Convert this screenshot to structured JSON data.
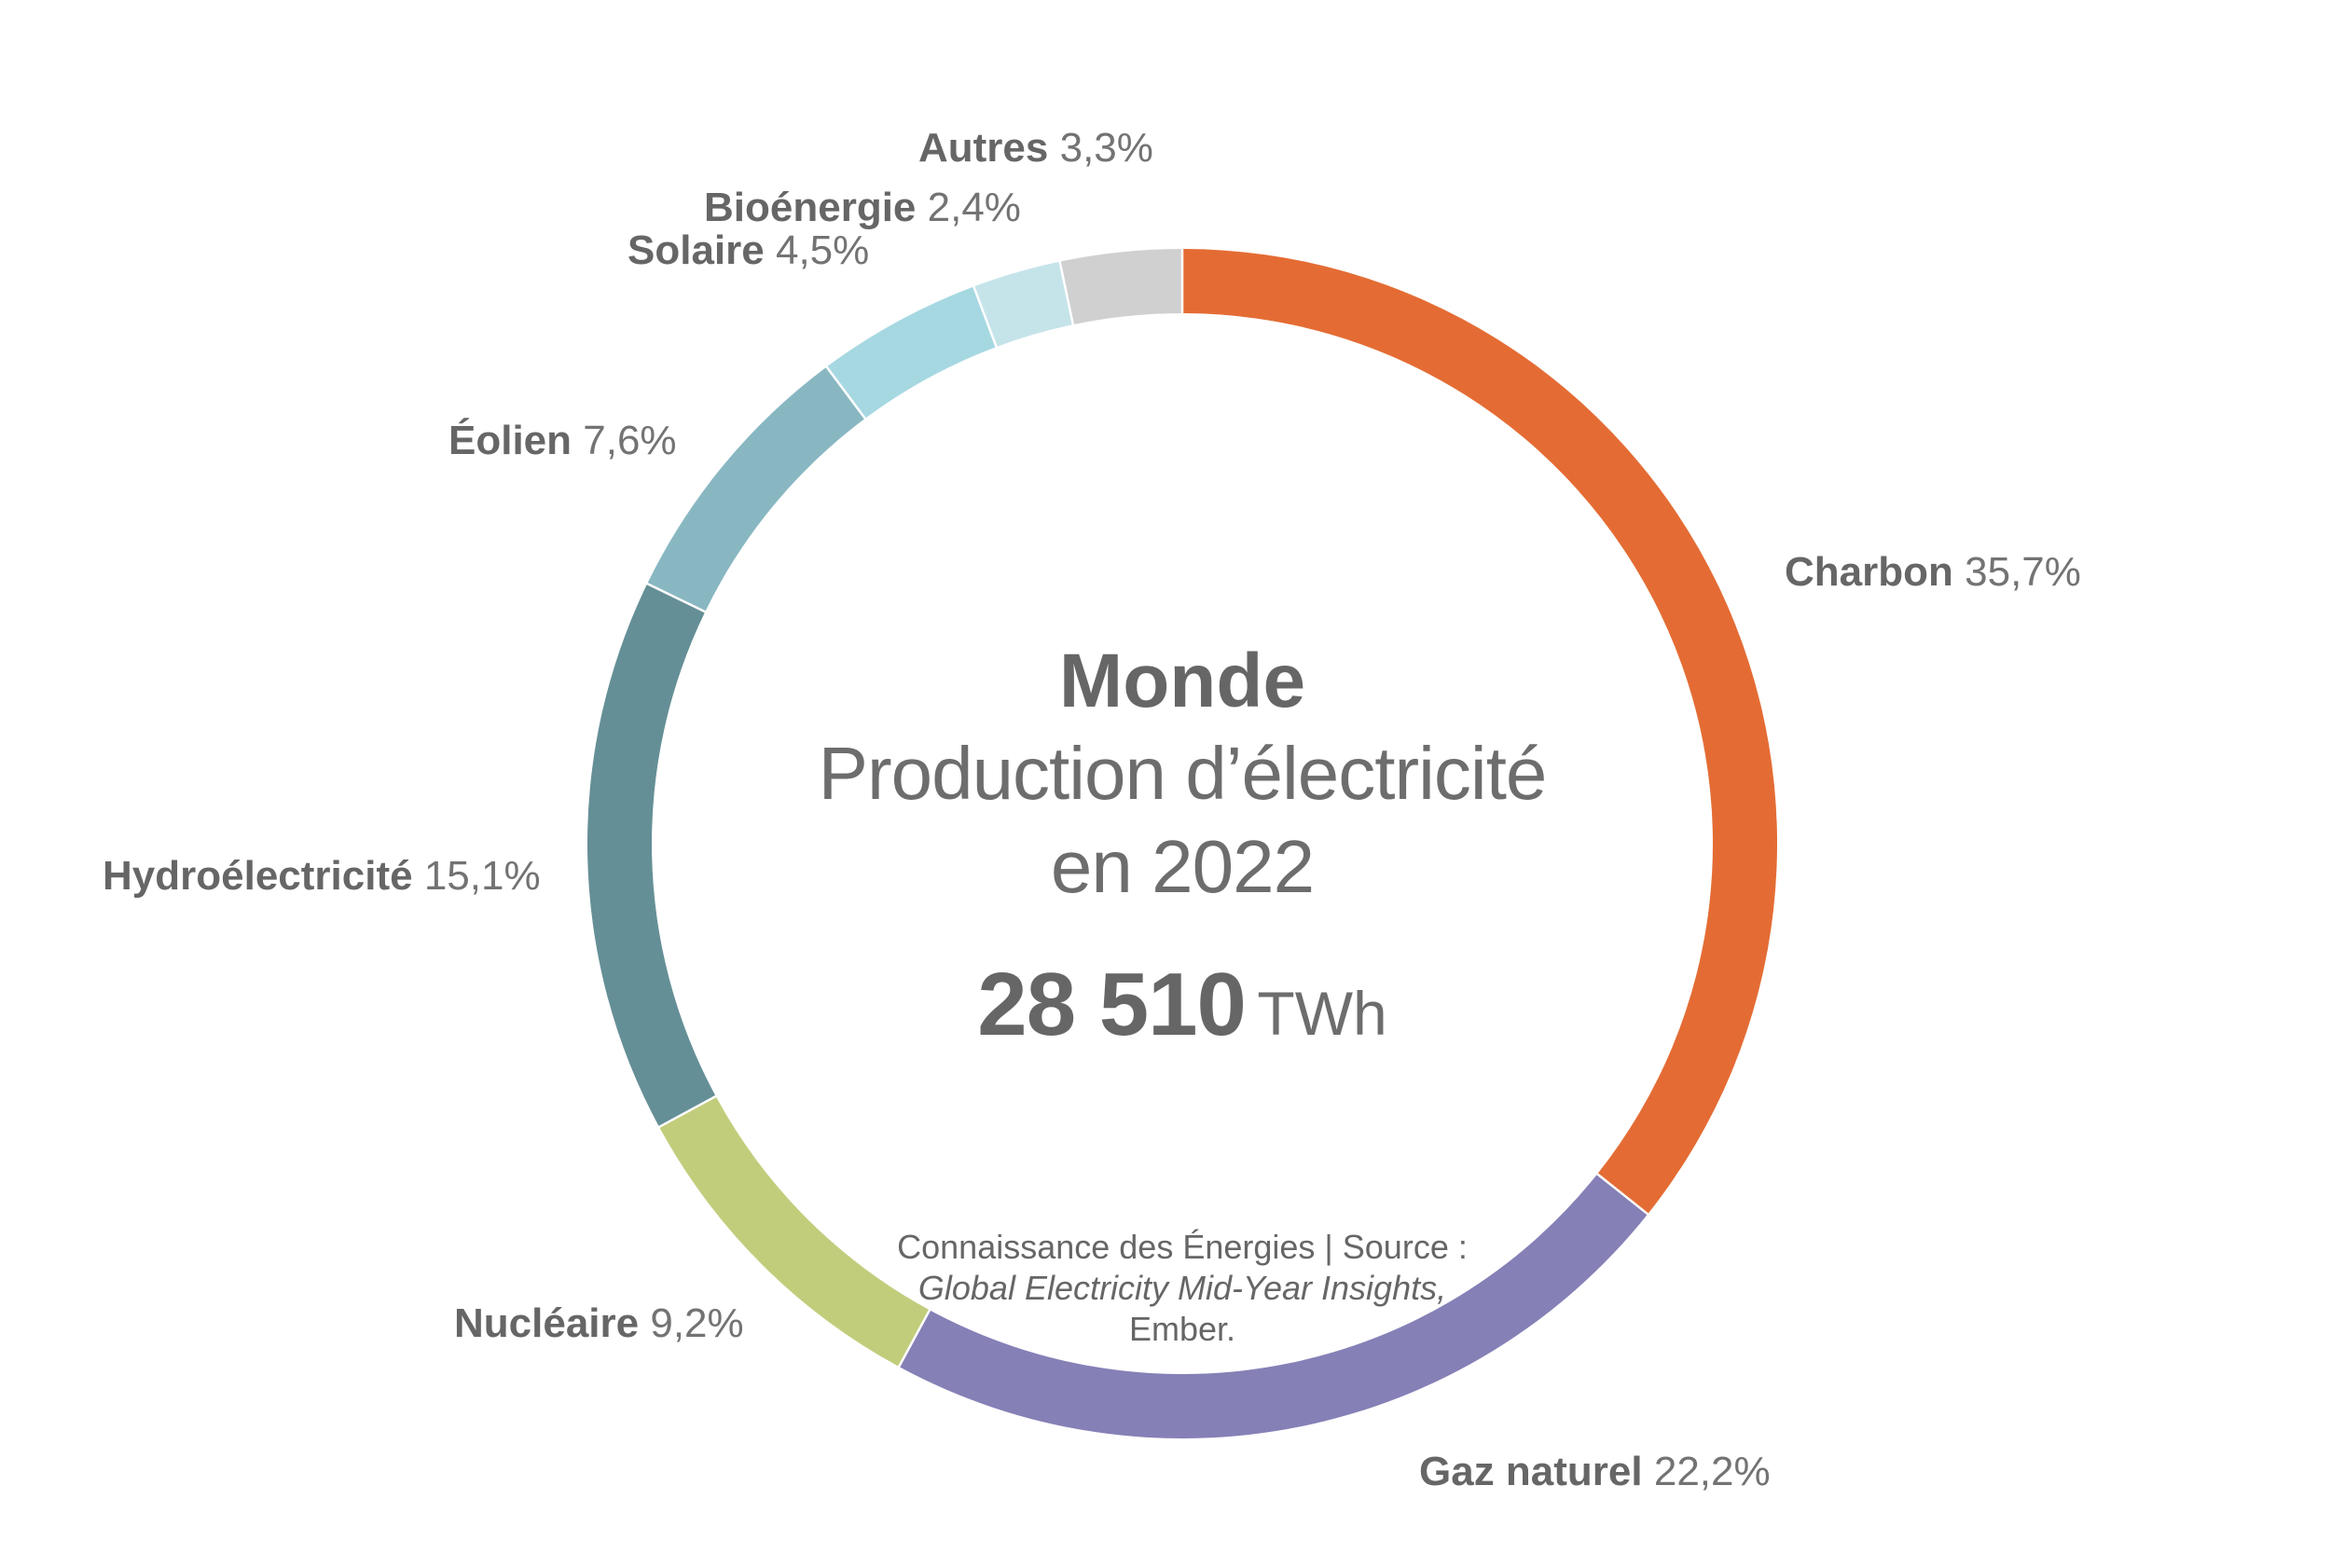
{
  "chart_data": {
    "type": "pie",
    "subtype": "donut",
    "title": "Monde",
    "subtitle": "Production d’électricité en 2022",
    "total": {
      "value": "28 510",
      "unit": "TWh"
    },
    "categories": [
      "Charbon",
      "Gaz naturel",
      "Nucléaire",
      "Hydroélectricité",
      "Éolien",
      "Solaire",
      "Bioénergie",
      "Autres"
    ],
    "values": [
      35.7,
      22.2,
      9.2,
      15.1,
      7.6,
      4.5,
      2.4,
      3.3
    ],
    "value_labels": [
      "35,7%",
      "22,2%",
      "9,2%",
      "15,1%",
      "7,6%",
      "4,5%",
      "2,4%",
      "3,3%"
    ],
    "colors": [
      "#E46C34",
      "#8580B6",
      "#C2CD7C",
      "#658F97",
      "#88B7C2",
      "#A6D8E2",
      "#C5E4EA",
      "#D0D0D0"
    ],
    "start_angle_deg": 0,
    "direction": "clockwise",
    "legend_position": "labels around ring",
    "source": "Connaissance des Énergies | Source : Global Electricity Mid-Year Insights, Ember."
  },
  "center": {
    "title": "Monde",
    "subtitle_line1": "Production d’électricité",
    "subtitle_line2": "en 2022",
    "total_value": "28 510",
    "total_unit": "TWh"
  },
  "labels": [
    {
      "name": "Charbon",
      "pct": "35,7%"
    },
    {
      "name": "Gaz naturel",
      "pct": "22,2%"
    },
    {
      "name": "Nucléaire",
      "pct": "9,2%"
    },
    {
      "name": "Hydroélectricité",
      "pct": "15,1%"
    },
    {
      "name": "Éolien",
      "pct": "7,6%"
    },
    {
      "name": "Solaire",
      "pct": "4,5%"
    },
    {
      "name": "Bioénergie",
      "pct": "2,4%"
    },
    {
      "name": "Autres",
      "pct": "3,3%"
    }
  ],
  "source": {
    "line1": "Connaissance des Énergies | Source :",
    "line2": "Global Electricity Mid-Year Insights,",
    "line3": "Ember."
  }
}
